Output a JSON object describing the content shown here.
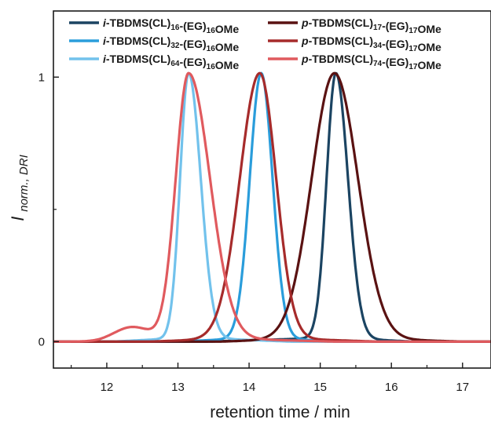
{
  "chart_data": {
    "type": "line",
    "xlabel": "retention time / min",
    "ylabel": {
      "main": "I",
      "sub": "norm., DRI"
    },
    "xlim": [
      11.25,
      17.4
    ],
    "ylim": [
      -0.1,
      1.25
    ],
    "x_ticks": [
      12,
      13,
      14,
      15,
      16,
      17
    ],
    "y_ticks": [
      0,
      1
    ],
    "grid": false,
    "legend_position": "top",
    "series": [
      {
        "name": "i-TBDMS(CL)16-(EG)16OMe",
        "label_parts": [
          [
            "i",
            "it"
          ],
          [
            "-TBDMS(CL)",
            ""
          ],
          [
            "16",
            "sub"
          ],
          [
            "-(EG)",
            ""
          ],
          [
            "16",
            "sub"
          ],
          [
            "OMe",
            ""
          ]
        ],
        "color": "#1b4462",
        "peak": 15.22,
        "sigma_left": 0.13,
        "sigma_right": 0.17,
        "base_start": 13.4,
        "base_end": 16.3
      },
      {
        "name": "i-TBDMS(CL)32-(EG)16OMe",
        "label_parts": [
          [
            "i",
            "it"
          ],
          [
            "-TBDMS(CL)",
            ""
          ],
          [
            "32",
            "sub"
          ],
          [
            "-(EG)",
            ""
          ],
          [
            "16",
            "sub"
          ],
          [
            "OMe",
            ""
          ]
        ],
        "color": "#2a9ddb",
        "peak": 14.17,
        "sigma_left": 0.16,
        "sigma_right": 0.16,
        "base_start": 13.0,
        "base_end": 15.3
      },
      {
        "name": "i-TBDMS(CL)64-(EG)16OMe",
        "label_parts": [
          [
            "i",
            "it"
          ],
          [
            "-TBDMS(CL)",
            ""
          ],
          [
            "64",
            "sub"
          ],
          [
            "-(EG)",
            ""
          ],
          [
            "16",
            "sub"
          ],
          [
            "OMe",
            ""
          ]
        ],
        "color": "#72c2ec",
        "peak": 13.15,
        "sigma_left": 0.12,
        "sigma_right": 0.17,
        "base_start": 12.1,
        "base_end": 14.6
      },
      {
        "name": "p-TBDMS(CL)17-(EG)17OMe",
        "label_parts": [
          [
            "p",
            "it"
          ],
          [
            "-TBDMS(CL)",
            ""
          ],
          [
            "17",
            "sub"
          ],
          [
            "-(EG)",
            ""
          ],
          [
            "17",
            "sub"
          ],
          [
            "OMe",
            ""
          ]
        ],
        "color": "#5a1212",
        "peak": 15.2,
        "sigma_left": 0.32,
        "sigma_right": 0.33,
        "base_start": 13.6,
        "base_end": 17.0
      },
      {
        "name": "p-TBDMS(CL)34-(EG)17OMe",
        "label_parts": [
          [
            "p",
            "it"
          ],
          [
            "-TBDMS(CL)",
            ""
          ],
          [
            "34",
            "sub"
          ],
          [
            "-(EG)",
            ""
          ],
          [
            "17",
            "sub"
          ],
          [
            "OMe",
            ""
          ]
        ],
        "color": "#a62b2b",
        "peak": 14.15,
        "sigma_left": 0.28,
        "sigma_right": 0.23,
        "base_start": 12.6,
        "base_end": 15.8
      },
      {
        "name": "p-TBDMS(CL)74-(EG)17OMe",
        "label_parts": [
          [
            "p",
            "it"
          ],
          [
            "-TBDMS(CL)",
            ""
          ],
          [
            "74",
            "sub"
          ],
          [
            "-(EG)",
            ""
          ],
          [
            "17",
            "sub"
          ],
          [
            "OMe",
            ""
          ]
        ],
        "color": "#e05a5e",
        "peak": 13.15,
        "sigma_left": 0.18,
        "sigma_right": 0.3,
        "base_start": 11.9,
        "base_end": 15.2,
        "shoulder": {
          "x": 12.35,
          "height": 0.05
        }
      }
    ]
  }
}
